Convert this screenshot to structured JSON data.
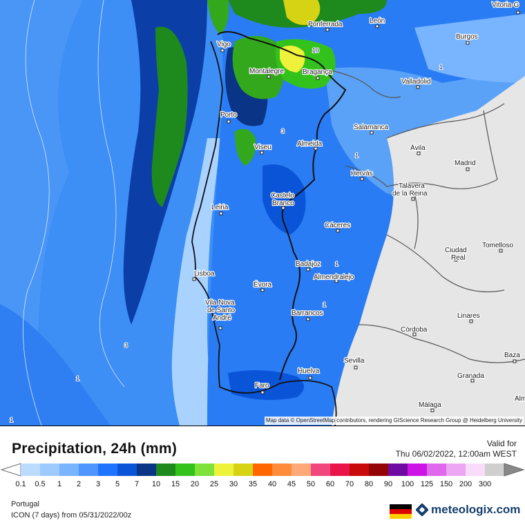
{
  "map": {
    "attribution": "Map data © OpenStreetMap contributors, rendering GIScience Research Group @ Heidelberg University",
    "cities": [
      {
        "name": "Vigo"
      },
      {
        "name": "Ponferrada"
      },
      {
        "name": "León"
      },
      {
        "name": "Burgos"
      },
      {
        "name": "Vitoria-G"
      },
      {
        "name": "Montalegre"
      },
      {
        "name": "Bragança"
      },
      {
        "name": "Valladolid"
      },
      {
        "name": "Porto"
      },
      {
        "name": "Salamanca"
      },
      {
        "name": "Viseu"
      },
      {
        "name": "Almeida"
      },
      {
        "name": "Ávila"
      },
      {
        "name": "Madrid"
      },
      {
        "name": "Hervás"
      },
      {
        "name": "Talavera de la Reina"
      },
      {
        "name": "Castelo Branco"
      },
      {
        "name": "Leiria"
      },
      {
        "name": "Cáceres"
      },
      {
        "name": "Ciudad Real"
      },
      {
        "name": "Tomelloso"
      },
      {
        "name": "Badajoz"
      },
      {
        "name": "Lisboa"
      },
      {
        "name": "Almendralejo"
      },
      {
        "name": "Évora"
      },
      {
        "name": "Vila Nova de Santo André"
      },
      {
        "name": "Barrancos"
      },
      {
        "name": "Linares"
      },
      {
        "name": "Córdoba"
      },
      {
        "name": "Baza"
      },
      {
        "name": "Sevilla"
      },
      {
        "name": "Huelva"
      },
      {
        "name": "Granada"
      },
      {
        "name": "Faro"
      },
      {
        "name": "Málaga"
      },
      {
        "name": "Alm"
      }
    ],
    "contour_labels": [
      "10",
      "3",
      "1",
      "1",
      "1",
      "1",
      "3",
      "1",
      "1"
    ]
  },
  "legend": {
    "title": "Precipitation, 24h (mm)",
    "valid_label": "Valid for",
    "valid_value": "Thu 06/02/2022, 12:00am WEST",
    "labels": [
      "0.1",
      "0.5",
      "1",
      "2",
      "3",
      "5",
      "7",
      "10",
      "15",
      "20",
      "25",
      "30",
      "35",
      "40",
      "45",
      "50",
      "60",
      "70",
      "80",
      "90",
      "100",
      "125",
      "150",
      "200",
      "300"
    ],
    "colors": [
      "#bcdcff",
      "#9ecbff",
      "#78b4ff",
      "#4f97ff",
      "#1f74ff",
      "#0a54d8",
      "#0a3485",
      "#1e8a1e",
      "#33c21c",
      "#7ee23a",
      "#eef23a",
      "#d6d214",
      "#ff6600",
      "#ff8c3a",
      "#ffa878",
      "#f0477d",
      "#e8144a",
      "#c80a0a",
      "#940404",
      "#6e0aa0",
      "#cc14e6",
      "#e068ec",
      "#eca6f4",
      "#f8dcfa",
      "#cfcfcf"
    ]
  },
  "footer": {
    "region": "Portugal",
    "model_line": "ICON (7 days) from 05/31/2022/00z",
    "brand": "meteologix.com"
  }
}
